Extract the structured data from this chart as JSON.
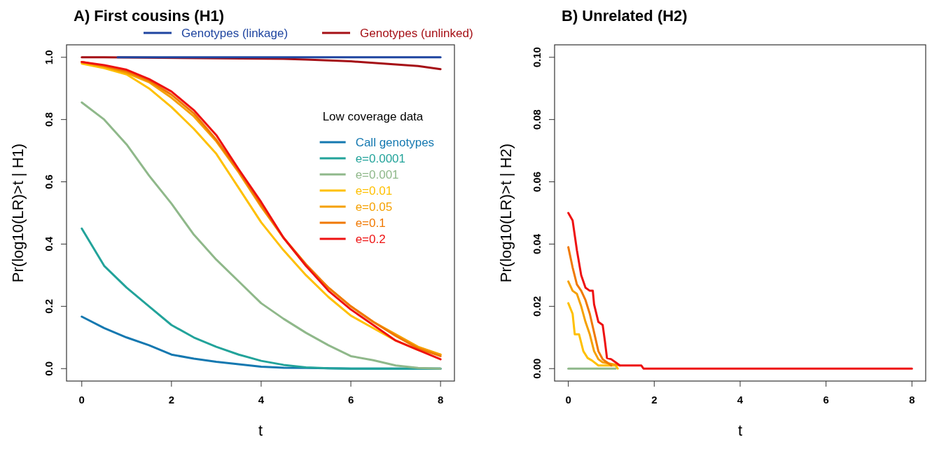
{
  "chart_data": [
    {
      "type": "line",
      "title": "A) First cousins (H1)",
      "xlabel": "t",
      "ylabel": "Pr(log10(LR)>t | H1)",
      "legend": "top right",
      "legend_title": "Low coverage data",
      "line_style": "solid",
      "marker": "none",
      "grid": false,
      "x": [
        0,
        0.5,
        1,
        1.5,
        2,
        2.5,
        3,
        3.5,
        4,
        4.5,
        5,
        5.5,
        6,
        6.5,
        7,
        7.5,
        8
      ],
      "xlim": [
        -0.34,
        8.31
      ],
      "xticks": [
        0,
        2,
        4,
        6,
        8
      ],
      "ylim": [
        -0.04,
        1.04
      ],
      "yticks": [
        {
          "value": 0,
          "label": "0.0"
        },
        {
          "value": 0.2,
          "label": "0.2"
        },
        {
          "value": 0.4,
          "label": "0.4"
        },
        {
          "value": 0.6,
          "label": "0.6"
        },
        {
          "value": 0.8,
          "label": "0.8"
        },
        {
          "value": 1,
          "label": "1.0"
        }
      ],
      "series": [
        {
          "name": "Genotypes (unlinked)",
          "color": "#a50f15",
          "x": [
            0,
            0.5,
            4.5,
            5,
            5.5,
            6,
            6.5,
            7,
            7.5,
            8
          ],
          "values": [
            1,
            1,
            0.995,
            0.993,
            0.99,
            0.987,
            0.982,
            0.977,
            0.972,
            0.962
          ]
        },
        {
          "name": "Genotypes (linkage)",
          "color": "#1f45a0",
          "x": [
            0.8,
            8
          ],
          "values": [
            1,
            1
          ]
        },
        {
          "name": "Call genotypes",
          "color": "#1478b0",
          "values": [
            0.167,
            0.13,
            0.1,
            0.075,
            0.045,
            0.032,
            0.022,
            0.014,
            0.006,
            0.003,
            0.002,
            0.001,
            0,
            0,
            0,
            0,
            0
          ]
        },
        {
          "name": "e=0.0001",
          "color": "#22a39a",
          "values": [
            0.45,
            0.33,
            0.26,
            0.2,
            0.14,
            0.1,
            0.07,
            0.045,
            0.025,
            0.012,
            0.004,
            0.001,
            0,
            0,
            0,
            0,
            0
          ]
        },
        {
          "name": "e=0.001",
          "color": "#8fb88a",
          "values": [
            0.855,
            0.8,
            0.72,
            0.62,
            0.53,
            0.43,
            0.35,
            0.28,
            0.21,
            0.16,
            0.115,
            0.075,
            0.04,
            0.027,
            0.01,
            0.002,
            0
          ]
        },
        {
          "name": "e=0.01",
          "color": "#ffc000",
          "values": [
            0.98,
            0.965,
            0.945,
            0.9,
            0.84,
            0.77,
            0.69,
            0.58,
            0.47,
            0.38,
            0.3,
            0.23,
            0.17,
            0.13,
            0.09,
            0.06,
            0.045
          ]
        },
        {
          "name": "e=0.05",
          "color": "#f5a000",
          "values": [
            0.985,
            0.97,
            0.95,
            0.92,
            0.87,
            0.81,
            0.73,
            0.63,
            0.52,
            0.42,
            0.33,
            0.26,
            0.2,
            0.15,
            0.11,
            0.07,
            0.045
          ]
        },
        {
          "name": "e=0.1",
          "color": "#f07800",
          "values": [
            0.985,
            0.972,
            0.955,
            0.925,
            0.88,
            0.82,
            0.735,
            0.635,
            0.525,
            0.42,
            0.335,
            0.26,
            0.2,
            0.15,
            0.105,
            0.065,
            0.04
          ]
        },
        {
          "name": "e=0.2",
          "color": "#ee1111",
          "values": [
            0.985,
            0.975,
            0.96,
            0.93,
            0.89,
            0.83,
            0.75,
            0.64,
            0.535,
            0.42,
            0.33,
            0.25,
            0.19,
            0.14,
            0.09,
            0.06,
            0.03
          ]
        }
      ]
    },
    {
      "type": "line",
      "title": "B) Unrelated (H2)",
      "xlabel": "t",
      "ylabel": "Pr(log10(LR)>t | H2)",
      "line_style": "solid",
      "marker": "none",
      "grid": false,
      "xlim": [
        -0.32,
        8.32
      ],
      "xticks": [
        0,
        2,
        4,
        6,
        8
      ],
      "ylim": [
        -0.004,
        0.104
      ],
      "yticks": [
        {
          "value": 0,
          "label": "0.00"
        },
        {
          "value": 0.02,
          "label": "0.02"
        },
        {
          "value": 0.04,
          "label": "0.04"
        },
        {
          "value": 0.06,
          "label": "0.06"
        },
        {
          "value": 0.08,
          "label": "0.08"
        },
        {
          "value": 0.1,
          "label": "0.10"
        }
      ],
      "series": [
        {
          "color": "#8fb88a",
          "x": [
            0,
            1.1
          ],
          "values": [
            0,
            0
          ]
        },
        {
          "color": "#ffc000",
          "x": [
            0,
            0.1,
            0.15,
            0.25,
            0.35,
            0.45,
            0.55,
            0.7,
            1.1,
            1.15
          ],
          "values": [
            0.021,
            0.0176,
            0.011,
            0.011,
            0.0056,
            0.0034,
            0.0026,
            0.001,
            0.001,
            0
          ]
        },
        {
          "color": "#f5a000",
          "x": [
            0,
            0.1,
            0.2,
            0.3,
            0.4,
            0.5,
            0.6,
            0.7,
            0.8,
            1,
            1.2
          ],
          "values": [
            0.028,
            0.025,
            0.024,
            0.02,
            0.015,
            0.011,
            0.0056,
            0.003,
            0.002,
            0.0015,
            0.001
          ]
        },
        {
          "color": "#f07800",
          "x": [
            0,
            0.1,
            0.2,
            0.3,
            0.4,
            0.5,
            0.6,
            0.7,
            0.8,
            0.9,
            1
          ],
          "values": [
            0.039,
            0.0325,
            0.027,
            0.025,
            0.022,
            0.0176,
            0.0116,
            0.0056,
            0.003,
            0.002,
            0.001
          ]
        },
        {
          "color": "#ee1111",
          "x": [
            0,
            0.1,
            0.2,
            0.3,
            0.4,
            0.5,
            0.57,
            0.6,
            0.7,
            0.8,
            0.85,
            0.9,
            1,
            1.1,
            1.2,
            1.7,
            1.75,
            8
          ],
          "values": [
            0.05,
            0.0476,
            0.038,
            0.03,
            0.026,
            0.025,
            0.025,
            0.0206,
            0.015,
            0.014,
            0.009,
            0.0034,
            0.003,
            0.002,
            0.001,
            0.001,
            0,
            0
          ]
        }
      ]
    }
  ]
}
